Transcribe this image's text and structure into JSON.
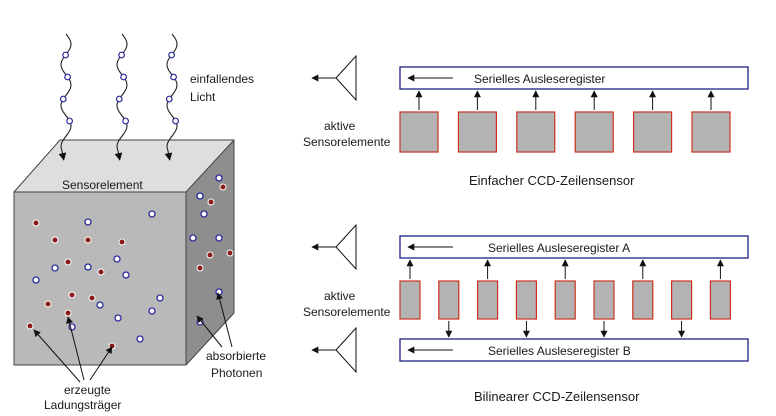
{
  "colors": {
    "cube_front": "#b9b9b9",
    "cube_top": "#dedede",
    "cube_side": "#8e8e8e",
    "electron": "#8b1a1a",
    "photon": "#2b2b9a",
    "register_border": "#1f1f8a",
    "sensor_fill": "#b3b3b3",
    "sensor_border": "#c8321e",
    "wave": "#222222"
  },
  "left": {
    "incident_light": [
      "einfallendes",
      "Licht"
    ],
    "sensor_element": "Sensorelement",
    "charge_carriers": [
      "erzeugte",
      "Ladungsträger"
    ],
    "absorbed_photons": [
      "absorbierte",
      "Photonen"
    ]
  },
  "linear": {
    "register": "Serielles Ausleseregister",
    "active_label": [
      "aktive",
      "Sensorelemente"
    ],
    "caption": "Einfacher CCD-Zeilensensor",
    "sensor_count": 6
  },
  "bilinear": {
    "register_a": "Serielles Ausleseregister A",
    "register_b": "Serielles Ausleseregister B",
    "active_label": [
      "aktive",
      "Sensorelemente"
    ],
    "caption": "Bilinearer CCD-Zeilensensor",
    "sensor_count": 9
  }
}
